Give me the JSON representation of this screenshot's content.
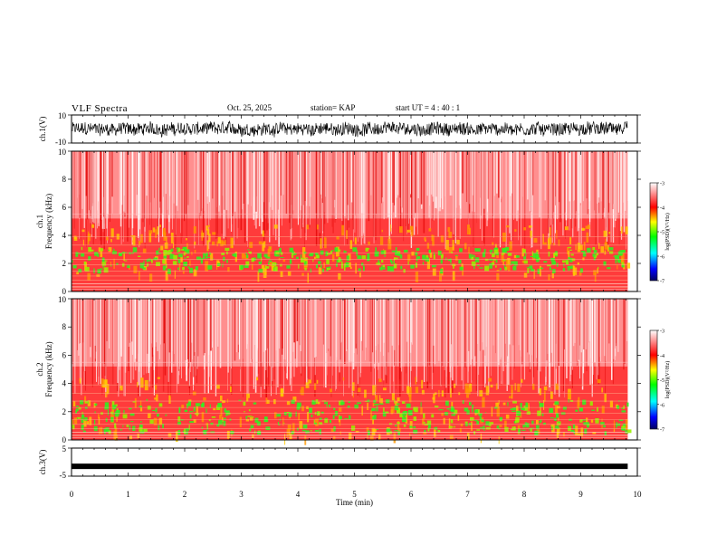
{
  "header": {
    "title": "VLF Spectra",
    "date": "Oct. 25, 2025",
    "station": "station= KAP",
    "start_ut": "start  UT  =   4 : 40 : 1"
  },
  "colors": {
    "trace": "#000000",
    "spectrogram_low": "#00cc00",
    "spectrogram_mid": "#ffcc00",
    "spectrogram_high": "#ff2222",
    "background": "#ffffff"
  },
  "chart_data": [
    {
      "type": "line",
      "panel": "ch1-waveform",
      "ylabel": "ch.1(V)",
      "ylim": [
        -10,
        10
      ],
      "yticks": [
        "10",
        "-10"
      ],
      "xlim": [
        0,
        10
      ],
      "description_values": {
        "amplitude_range": [
          -8,
          8
        ],
        "data_end_min": 9.83
      }
    },
    {
      "type": "heatmap",
      "panel": "ch1-spectrogram",
      "ylabel_line1": "ch.1",
      "ylabel_line2": "Frequency (kHz)",
      "ylim": [
        0,
        10
      ],
      "yticks": [
        "0",
        "2",
        "4",
        "6",
        "8",
        "10"
      ],
      "xlim": [
        0,
        10
      ],
      "data_end_min": 9.83,
      "green_band_khz": [
        1.6,
        3.2
      ],
      "colorbar": {
        "label": "log(PSD)(V²/Hz)",
        "ticks": [
          "-3",
          "-4",
          "-5",
          "-6",
          "-7"
        ],
        "range": [
          -7,
          -3
        ]
      }
    },
    {
      "type": "heatmap",
      "panel": "ch2-spectrogram",
      "ylabel_line1": "ch.2",
      "ylabel_line2": "Frequency (kHz)",
      "ylim": [
        0,
        10
      ],
      "yticks": [
        "0",
        "2",
        "4",
        "6",
        "8",
        "10"
      ],
      "xlim": [
        0,
        10
      ],
      "data_end_min": 9.83,
      "green_band_khz": [
        0.6,
        2.9
      ],
      "colorbar": {
        "label": "log(PSD)(V²/Hz)",
        "ticks": [
          "-3",
          "-4",
          "-5",
          "-6",
          "-7"
        ],
        "range": [
          -7,
          -3
        ]
      }
    },
    {
      "type": "line",
      "panel": "ch3-waveform",
      "ylabel": "ch.3(V)",
      "ylim": [
        -5,
        5
      ],
      "yticks": [
        "5",
        "-5"
      ],
      "xlim": [
        0,
        10
      ],
      "level_v": -1.5,
      "data_end_min": 9.83
    }
  ],
  "xaxis": {
    "label": "Time (min)",
    "ticks": [
      "0",
      "1",
      "2",
      "3",
      "4",
      "5",
      "6",
      "7",
      "8",
      "9",
      "10"
    ]
  }
}
